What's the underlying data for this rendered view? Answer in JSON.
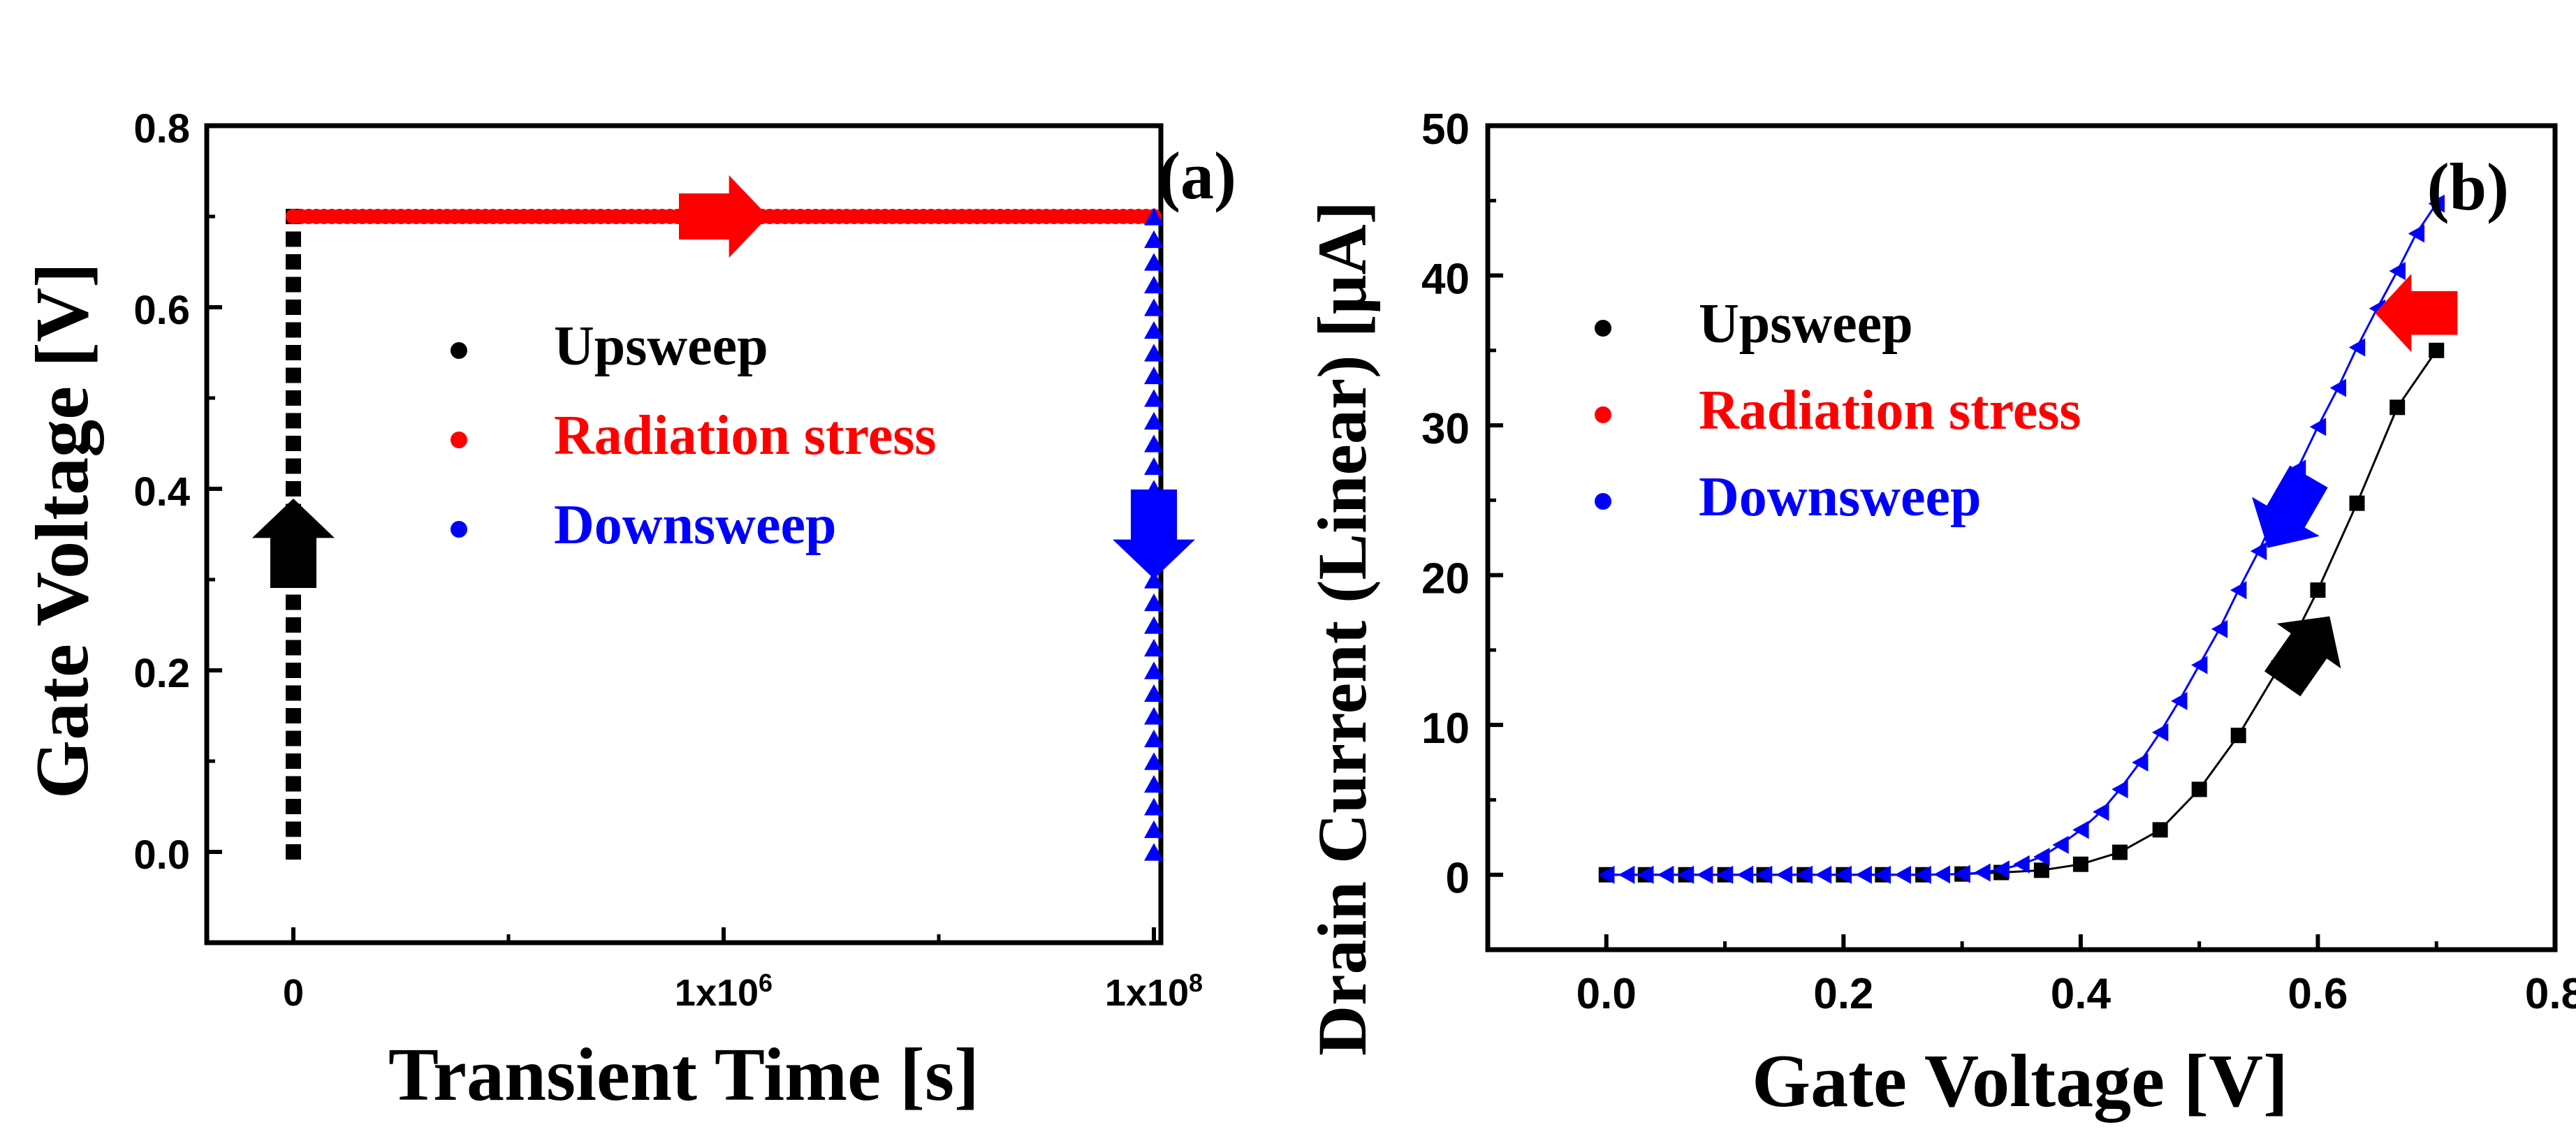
{
  "chart_data": [
    {
      "type": "scatter",
      "panel_label": "(a)",
      "title": "",
      "xlabel": "Transient Time [s]",
      "ylabel": "Gate Voltage [V]",
      "x_axis_kind": "categorical-time",
      "xticks": [
        "0",
        "1x10",
        "1x10"
      ],
      "xtick_exponents": [
        "",
        "6",
        "8"
      ],
      "ylim": [
        -0.1,
        0.8
      ],
      "yticks": [
        "0.0",
        "0.2",
        "0.4",
        "0.6",
        "0.8"
      ],
      "ytick_values": [
        0.0,
        0.2,
        0.4,
        0.6,
        0.8
      ],
      "legend": [
        {
          "label": "Upsweep",
          "color": "#000000"
        },
        {
          "label": "Radiation stress",
          "color": "#ff0000"
        },
        {
          "label": "Downsweep",
          "color": "#0000ff"
        }
      ],
      "series": [
        {
          "name": "Upsweep",
          "color": "#000000",
          "marker": "square",
          "x_position": 0,
          "y_start": 0.0,
          "y_end": 0.7,
          "y_step": 0.025
        },
        {
          "name": "Radiation stress",
          "color": "#ff0000",
          "marker": "circle",
          "x_position_range": [
            0,
            2
          ],
          "y_value": 0.7
        },
        {
          "name": "Downsweep",
          "color": "#0000ff",
          "marker": "triangle",
          "x_position": 2,
          "y_start": 0.7,
          "y_end": 0.0,
          "y_step": 0.025
        }
      ],
      "annotations": [
        {
          "type": "arrow",
          "direction": "up",
          "color": "#000000",
          "x_position": 0,
          "y": 0.34
        },
        {
          "type": "arrow",
          "direction": "right",
          "color": "#ff0000",
          "x_position": 1,
          "y": 0.7
        },
        {
          "type": "arrow",
          "direction": "down",
          "color": "#0000ff",
          "x_position": 2,
          "y": 0.35
        }
      ]
    },
    {
      "type": "line",
      "panel_label": "(b)",
      "title": "",
      "xlabel": "Gate Voltage [V]",
      "ylabel": "Drain Current (Linear) [μA]",
      "xlim": [
        -0.1,
        0.8
      ],
      "ylim": [
        -5,
        50
      ],
      "xticks": [
        "0.0",
        "0.2",
        "0.4",
        "0.6",
        "0.8"
      ],
      "xtick_values": [
        0.0,
        0.2,
        0.4,
        0.6,
        0.8
      ],
      "yticks": [
        "0",
        "10",
        "20",
        "30",
        "40",
        "50"
      ],
      "ytick_values": [
        0,
        10,
        20,
        30,
        40,
        50
      ],
      "legend": [
        {
          "label": "Upsweep",
          "color": "#000000"
        },
        {
          "label": "Radiation stress",
          "color": "#ff0000"
        },
        {
          "label": "Downsweep",
          "color": "#0000ff"
        }
      ],
      "series": [
        {
          "name": "Upsweep",
          "color": "#000000",
          "marker": "square",
          "x": [
            0.0,
            0.033,
            0.067,
            0.1,
            0.133,
            0.167,
            0.2,
            0.233,
            0.267,
            0.3,
            0.333,
            0.367,
            0.4,
            0.433,
            0.467,
            0.5,
            0.533,
            0.567,
            0.6,
            0.633,
            0.667,
            0.7
          ],
          "y": [
            0,
            0,
            0,
            0,
            0,
            0,
            0,
            0,
            0,
            0.05,
            0.15,
            0.3,
            0.7,
            1.5,
            3.0,
            5.7,
            9.3,
            13.8,
            19.0,
            24.8,
            31.2,
            35.0
          ]
        },
        {
          "name": "Downsweep",
          "color": "#0000ff",
          "marker": "triangle-left",
          "x": [
            0.7,
            0.683,
            0.667,
            0.65,
            0.633,
            0.617,
            0.6,
            0.583,
            0.567,
            0.55,
            0.533,
            0.517,
            0.5,
            0.483,
            0.467,
            0.45,
            0.433,
            0.417,
            0.4,
            0.383,
            0.367,
            0.35,
            0.333,
            0.317,
            0.3,
            0.283,
            0.267,
            0.25,
            0.233,
            0.217,
            0.2,
            0.183,
            0.167,
            0.15,
            0.133,
            0.117,
            0.1,
            0.083,
            0.067,
            0.05,
            0.033,
            0.017,
            0.0
          ],
          "y": [
            44.8,
            42.8,
            40.3,
            37.8,
            35.2,
            32.5,
            29.9,
            27.1,
            24.4,
            21.6,
            19.0,
            16.4,
            14.0,
            11.6,
            9.5,
            7.5,
            5.7,
            4.2,
            3.0,
            2.0,
            1.2,
            0.7,
            0.35,
            0.15,
            0.05,
            0.02,
            0,
            0,
            0,
            0,
            0,
            0,
            0,
            0,
            0,
            0,
            0,
            0,
            0,
            0,
            0,
            0,
            0
          ]
        }
      ],
      "annotations": [
        {
          "type": "arrow",
          "direction": "left",
          "color": "#ff0000",
          "x": 0.683,
          "y": 37.5
        },
        {
          "type": "arrow",
          "direction": "down-left",
          "color": "#0000ff",
          "x": 0.575,
          "y": 24.2
        },
        {
          "type": "arrow",
          "direction": "up-right",
          "color": "#000000",
          "x": 0.59,
          "y": 15.0
        }
      ]
    }
  ]
}
